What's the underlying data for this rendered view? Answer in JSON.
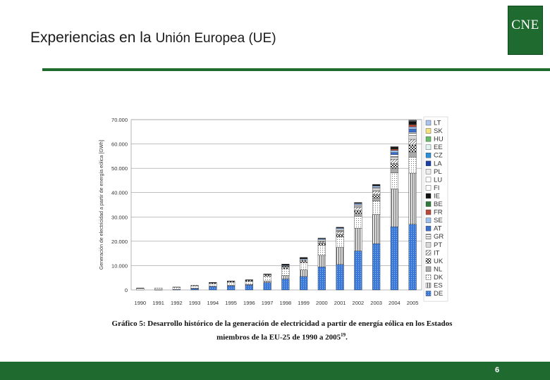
{
  "slide": {
    "title_part1": "Experiencias en la ",
    "title_part2": "Unión Europea (UE)",
    "logo_text": "CNE",
    "page_number": "6",
    "brand_color": "#1f6b2f"
  },
  "caption": {
    "line1": "Gráfico 5: Desarrollo histórico de la generación de electricidad a partir de energía eólica en los Estados",
    "line2": "miembros de la EU-25 de 1990 a 2005",
    "footnote_ref": "19",
    "line2_end": "."
  },
  "chart_data": {
    "type": "bar",
    "stacked": true,
    "ylabel": "Generación de electricidad a partir de energía eólica [GWh]",
    "ylim": [
      0,
      70000
    ],
    "yticks": [
      "0",
      "10.000",
      "20.000",
      "30.000",
      "40.000",
      "50.000",
      "60.000",
      "70.000"
    ],
    "grid": true,
    "legend_position": "right",
    "categories": [
      "1990",
      "1991",
      "1992",
      "1993",
      "1994",
      "1995",
      "1996",
      "1997",
      "1998",
      "1999",
      "2000",
      "2001",
      "2002",
      "2003",
      "2004",
      "2005"
    ],
    "series": [
      {
        "name": "DE",
        "color": "#3a78d8",
        "values": [
          0,
          100,
          200,
          600,
          1400,
          1700,
          2000,
          3000,
          4500,
          5500,
          9500,
          10500,
          16000,
          19000,
          26000,
          27000
        ]
      },
      {
        "name": "ES",
        "color": "#c8c8c8",
        "values": [
          0,
          0,
          0,
          100,
          100,
          200,
          300,
          700,
          1400,
          2700,
          4700,
          7000,
          9400,
          12000,
          15500,
          21000
        ]
      },
      {
        "name": "DK",
        "color": "#e6e6e6",
        "values": [
          600,
          700,
          900,
          1000,
          1100,
          1200,
          1200,
          1900,
          2800,
          3000,
          4200,
          4300,
          4900,
          5500,
          6600,
          6600
        ]
      },
      {
        "name": "NL",
        "color": "#aaaaaa",
        "values": [
          0,
          0,
          0,
          0,
          0,
          0,
          0,
          0,
          0,
          0,
          0,
          0,
          1000,
          1300,
          1900,
          2100
        ]
      },
      {
        "name": "UK",
        "color": "#7a7a7a",
        "values": [
          0,
          0,
          100,
          200,
          300,
          400,
          500,
          700,
          900,
          850,
          950,
          960,
          1250,
          1300,
          1900,
          2900
        ]
      },
      {
        "name": "IT",
        "color": "#ffffff",
        "values": [
          0,
          0,
          0,
          0,
          0,
          0,
          0,
          100,
          200,
          400,
          600,
          1200,
          1400,
          1500,
          1800,
          2300
        ]
      },
      {
        "name": "PT",
        "color": "#d8d8d8",
        "values": [
          0,
          0,
          0,
          0,
          0,
          0,
          0,
          0,
          0,
          0,
          200,
          250,
          350,
          500,
          800,
          1700
        ]
      },
      {
        "name": "GR",
        "color": "#f2f2f2",
        "values": [
          0,
          0,
          0,
          0,
          0,
          0,
          0,
          0,
          0,
          0,
          450,
          750,
          650,
          1000,
          1100,
          1200
        ]
      },
      {
        "name": "AT",
        "color": "#3a6fc8",
        "values": [
          0,
          0,
          0,
          0,
          0,
          0,
          0,
          0,
          0,
          0,
          0,
          0,
          0,
          0,
          900,
          1300
        ]
      },
      {
        "name": "SE",
        "color": "#9ec0ef",
        "values": [
          0,
          0,
          0,
          0,
          0,
          0,
          0,
          0,
          300,
          400,
          450,
          500,
          600,
          680,
          850,
          900
        ]
      },
      {
        "name": "FR",
        "color": "#b84a3a",
        "values": [
          0,
          0,
          0,
          0,
          0,
          0,
          0,
          0,
          0,
          0,
          0,
          0,
          0,
          0,
          600,
          900
        ]
      },
      {
        "name": "BE",
        "color": "#2e7a3a",
        "values": [
          0,
          0,
          0,
          0,
          0,
          0,
          0,
          0,
          0,
          0,
          0,
          0,
          0,
          0,
          100,
          200
        ]
      },
      {
        "name": "IE",
        "color": "#111111",
        "values": [
          200,
          0,
          0,
          0,
          200,
          200,
          200,
          200,
          500,
          500,
          250,
          320,
          400,
          600,
          700,
          1100
        ]
      },
      {
        "name": "FI",
        "color": "#ffffff",
        "values": [
          0,
          0,
          0,
          0,
          0,
          0,
          0,
          0,
          0,
          0,
          0,
          0,
          0,
          0,
          100,
          170
        ]
      },
      {
        "name": "LU",
        "color": "#ffffff",
        "values": [
          0,
          0,
          0,
          0,
          0,
          0,
          0,
          0,
          0,
          0,
          0,
          0,
          0,
          0,
          0,
          50
        ]
      },
      {
        "name": "PL",
        "color": "#ececec",
        "values": [
          0,
          0,
          0,
          0,
          0,
          0,
          0,
          0,
          0,
          0,
          0,
          0,
          0,
          0,
          100,
          140
        ]
      },
      {
        "name": "LA",
        "color": "#1c3fa8",
        "values": [
          0,
          0,
          0,
          0,
          0,
          0,
          0,
          0,
          0,
          0,
          0,
          0,
          0,
          0,
          0,
          50
        ]
      },
      {
        "name": "CZ",
        "color": "#2a8fd8",
        "values": [
          0,
          0,
          0,
          0,
          0,
          0,
          0,
          0,
          0,
          0,
          0,
          0,
          0,
          0,
          0,
          20
        ]
      },
      {
        "name": "EE",
        "color": "#e0f4f4",
        "values": [
          0,
          0,
          0,
          0,
          0,
          0,
          0,
          0,
          0,
          0,
          0,
          0,
          0,
          0,
          0,
          60
        ]
      },
      {
        "name": "HU",
        "color": "#66bb66",
        "values": [
          0,
          0,
          0,
          0,
          0,
          0,
          0,
          0,
          0,
          0,
          0,
          0,
          0,
          0,
          0,
          10
        ]
      },
      {
        "name": "SK",
        "color": "#f4e37a",
        "values": [
          0,
          0,
          0,
          0,
          0,
          0,
          0,
          0,
          0,
          0,
          0,
          0,
          0,
          0,
          0,
          5
        ]
      },
      {
        "name": "LT",
        "color": "#a8c4ef",
        "values": [
          0,
          0,
          0,
          0,
          0,
          0,
          0,
          0,
          0,
          0,
          0,
          0,
          0,
          0,
          0,
          2
        ]
      }
    ]
  }
}
